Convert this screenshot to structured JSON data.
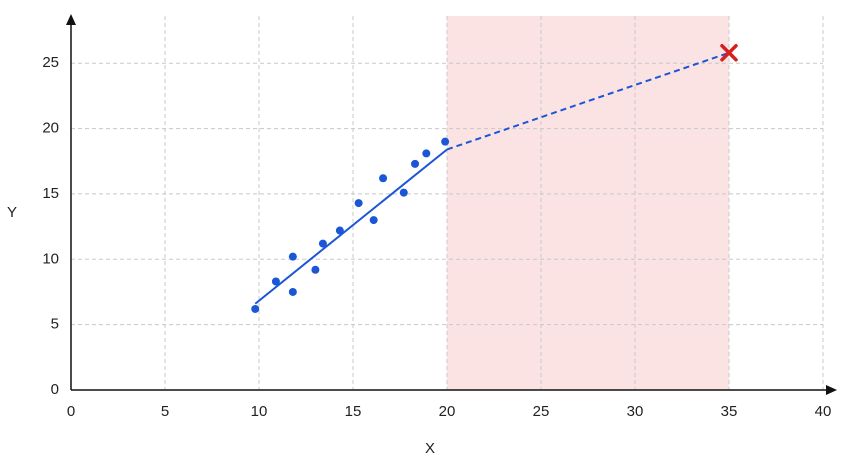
{
  "chart_data": {
    "type": "scatter",
    "x_label": "X",
    "y_label": "Y",
    "xlim": [
      0,
      40
    ],
    "ylim": [
      0,
      28
    ],
    "xticks": [
      0,
      5,
      10,
      15,
      20,
      25,
      30,
      35,
      40
    ],
    "yticks": [
      0,
      5,
      10,
      15,
      20,
      25
    ],
    "grid": true,
    "points": {
      "color": "#1a56d6",
      "x": [
        9.8,
        10.9,
        11.8,
        11.8,
        13.0,
        13.4,
        14.3,
        15.3,
        16.1,
        16.6,
        17.7,
        18.3,
        18.9,
        19.9
      ],
      "y": [
        6.2,
        8.3,
        10.2,
        7.5,
        9.2,
        11.2,
        12.2,
        14.3,
        13.0,
        16.2,
        15.1,
        17.3,
        18.1,
        19.0
      ]
    },
    "fit": {
      "color": "#1a56d6",
      "x": [
        9.8,
        20
      ],
      "y": [
        6.6,
        18.4
      ]
    },
    "extrapolation": {
      "color": "#1a56d6",
      "x": [
        20,
        35
      ],
      "y": [
        18.4,
        25.8
      ]
    },
    "prediction": {
      "color": "#d62020",
      "x": 35,
      "y": 25.8
    },
    "shaded_region": {
      "color": "#fbe3e3",
      "x": [
        20,
        35
      ]
    }
  }
}
